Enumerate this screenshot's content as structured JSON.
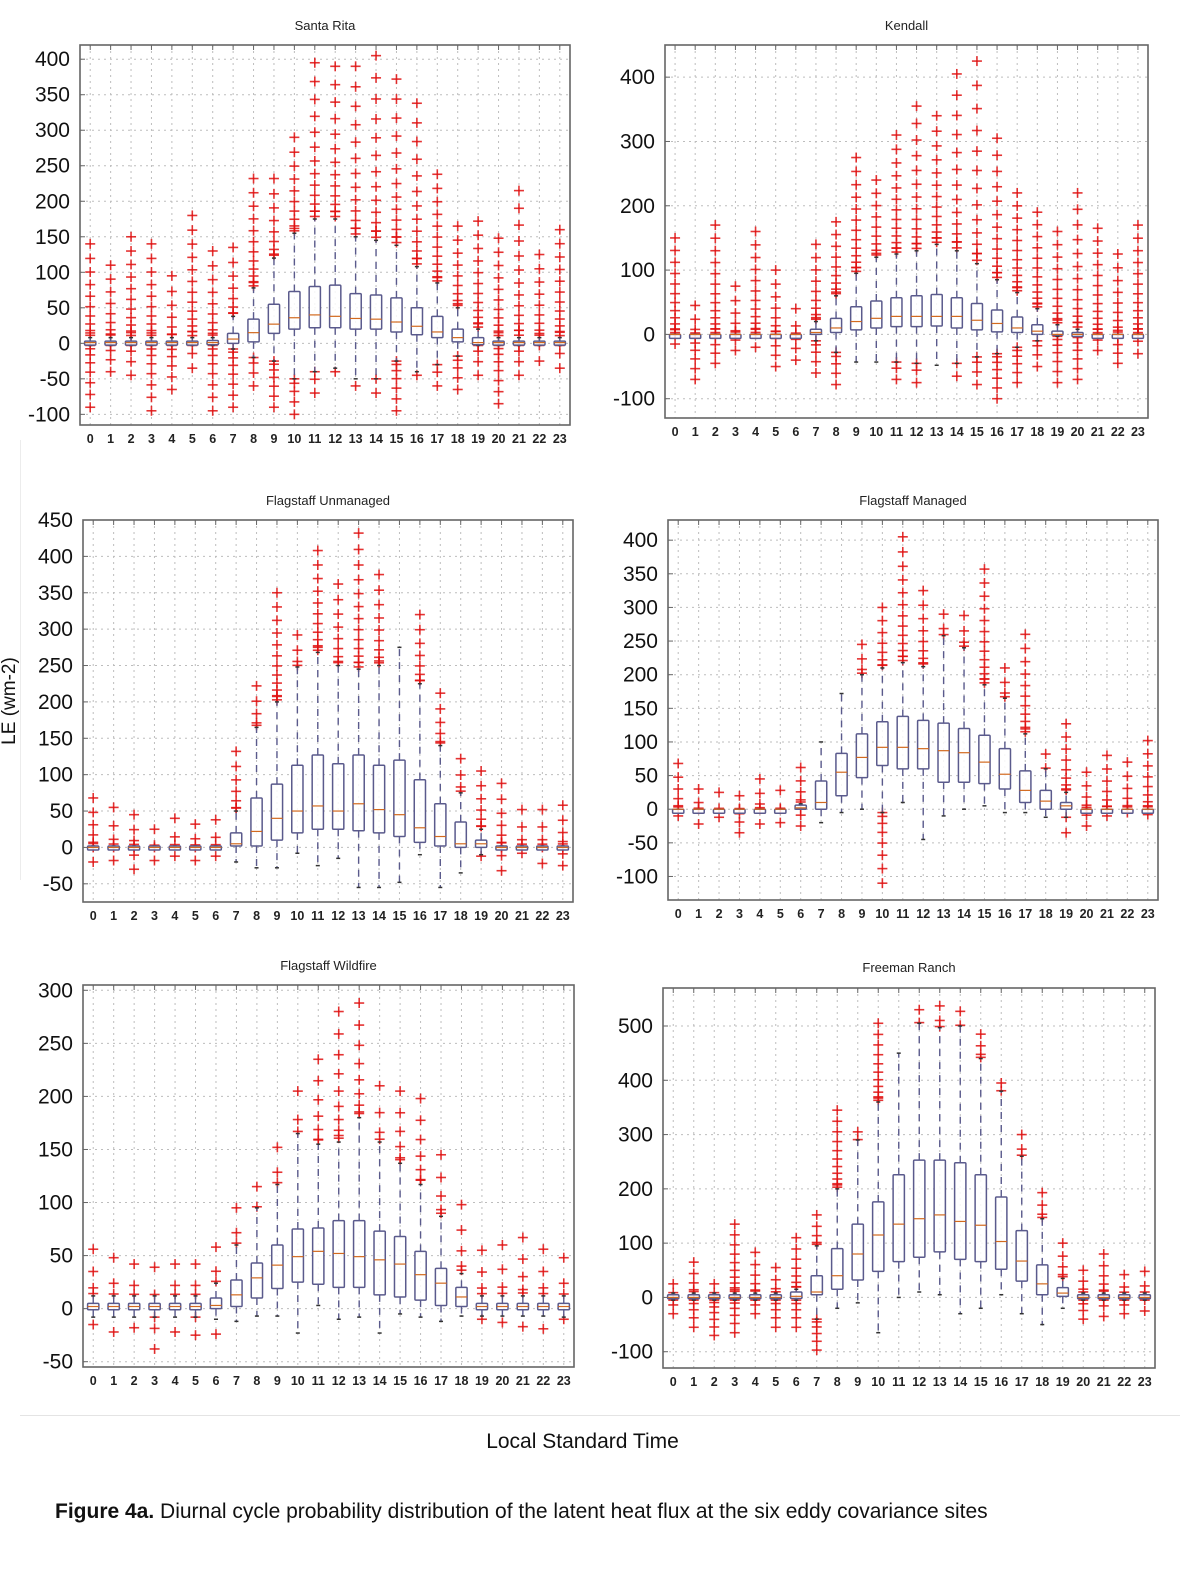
{
  "figure": {
    "ylabel": "LE (wm-2)",
    "xlabel": "Local Standard Time",
    "caption_bold": "Figure 4a.",
    "caption_text": " Diurnal cycle probability distribution of the latent heat flux at the six eddy covariance sites"
  },
  "colors": {
    "box": "#5a5a8c",
    "median": "#d2691e",
    "outlier": "#e01010",
    "frame": "#666666",
    "grid": "#bdbdbd"
  },
  "chart_data": [
    {
      "type": "box",
      "title": "Santa Rita",
      "xlabel": "Local Standard Time",
      "ylabel": "LE (wm-2)",
      "categories": [
        "0",
        "1",
        "2",
        "3",
        "4",
        "5",
        "6",
        "7",
        "8",
        "9",
        "10",
        "11",
        "12",
        "13",
        "14",
        "15",
        "16",
        "17",
        "18",
        "19",
        "20",
        "21",
        "22",
        "23"
      ],
      "ylim": [
        -115,
        420
      ],
      "yticks": [
        -100,
        -50,
        0,
        50,
        100,
        150,
        200,
        250,
        300,
        350,
        400
      ],
      "grid": true,
      "q1": [
        -2,
        -2,
        -2,
        -2,
        -2,
        -2,
        -2,
        0,
        2,
        14,
        20,
        22,
        22,
        20,
        20,
        16,
        12,
        8,
        2,
        -2,
        -2,
        -2,
        -2,
        -2
      ],
      "median": [
        1,
        1,
        1,
        1,
        1,
        1,
        1,
        6,
        15,
        27,
        36,
        40,
        38,
        35,
        34,
        30,
        24,
        16,
        8,
        1,
        1,
        1,
        1,
        1
      ],
      "q3": [
        3,
        3,
        3,
        3,
        3,
        3,
        4,
        14,
        34,
        55,
        73,
        80,
        82,
        70,
        68,
        64,
        50,
        38,
        20,
        8,
        3,
        3,
        3,
        3
      ],
      "wmin": [
        -3,
        -3,
        -3,
        -3,
        -3,
        -3,
        -3,
        -8,
        -20,
        -25,
        -50,
        -40,
        -35,
        -50,
        -50,
        -25,
        -40,
        -30,
        -18,
        -3,
        -3,
        -3,
        -3,
        -3
      ],
      "wmax": [
        8,
        8,
        8,
        8,
        8,
        8,
        8,
        38,
        78,
        120,
        155,
        175,
        175,
        150,
        145,
        138,
        108,
        85,
        50,
        20,
        8,
        8,
        8,
        8
      ],
      "outliers_max": [
        140,
        110,
        150,
        140,
        95,
        180,
        130,
        135,
        232,
        232,
        290,
        395,
        390,
        390,
        405,
        372,
        338,
        238,
        165,
        172,
        148,
        215,
        125,
        160
      ],
      "outliers_min": [
        -90,
        -40,
        -45,
        -95,
        -65,
        -35,
        -95,
        -90,
        -60,
        -90,
        -100,
        -70,
        -40,
        -60,
        -70,
        -95,
        -45,
        -60,
        -65,
        -45,
        -85,
        -45,
        -25,
        -35
      ]
    },
    {
      "type": "box",
      "title": "Kendall",
      "xlabel": "Local Standard Time",
      "ylabel": "LE (wm-2)",
      "categories": [
        "0",
        "1",
        "2",
        "3",
        "4",
        "5",
        "6",
        "7",
        "8",
        "9",
        "10",
        "11",
        "12",
        "13",
        "14",
        "15",
        "16",
        "17",
        "18",
        "19",
        "20",
        "21",
        "22",
        "23"
      ],
      "ylim": [
        -130,
        450
      ],
      "yticks": [
        -100,
        0,
        100,
        200,
        300,
        400
      ],
      "grid": true,
      "q1": [
        0,
        0,
        0,
        0,
        0,
        0,
        0,
        0,
        3,
        7,
        10,
        12,
        12,
        13,
        10,
        7,
        4,
        3,
        0,
        0,
        0,
        0,
        0,
        0
      ],
      "median": [
        0,
        0,
        0,
        0,
        0,
        0,
        0,
        3,
        10,
        20,
        25,
        28,
        28,
        28,
        28,
        22,
        17,
        10,
        5,
        0,
        0,
        0,
        0,
        0
      ],
      "q3": [
        0,
        0,
        0,
        0,
        0,
        0,
        0,
        8,
        25,
        43,
        52,
        57,
        60,
        62,
        57,
        48,
        38,
        27,
        15,
        5,
        3,
        0,
        0,
        0
      ],
      "wmin": [
        0,
        0,
        0,
        0,
        0,
        0,
        0,
        -10,
        -28,
        -43,
        -43,
        -43,
        -45,
        -48,
        -45,
        -35,
        -30,
        -20,
        -10,
        -3,
        0,
        0,
        0,
        0
      ],
      "wmax": [
        0,
        0,
        0,
        0,
        0,
        0,
        0,
        20,
        60,
        95,
        120,
        125,
        130,
        140,
        130,
        110,
        85,
        65,
        40,
        15,
        8,
        0,
        0,
        0
      ],
      "outliers_max": [
        150,
        45,
        170,
        75,
        160,
        100,
        40,
        140,
        175,
        275,
        240,
        310,
        355,
        340,
        405,
        425,
        305,
        220,
        190,
        160,
        220,
        165,
        125,
        170
      ],
      "outliers_min": [
        -15,
        -70,
        -45,
        -25,
        -20,
        -50,
        -40,
        -60,
        -78,
        -5,
        -10,
        -70,
        -75,
        -45,
        -65,
        -78,
        -100,
        -75,
        -50,
        -75,
        -70,
        -25,
        -45,
        -30
      ]
    },
    {
      "type": "box",
      "title": "Flagstaff Unmanaged",
      "xlabel": "Local Standard Time",
      "ylabel": "LE (wm-2)",
      "categories": [
        "0",
        "1",
        "2",
        "3",
        "4",
        "5",
        "6",
        "7",
        "8",
        "9",
        "10",
        "11",
        "12",
        "13",
        "14",
        "15",
        "16",
        "17",
        "18",
        "19",
        "20",
        "21",
        "22",
        "23"
      ],
      "ylim": [
        -75,
        450
      ],
      "yticks": [
        -50,
        0,
        50,
        100,
        150,
        200,
        250,
        300,
        350,
        400,
        450
      ],
      "grid": true,
      "q1": [
        0,
        0,
        0,
        0,
        0,
        0,
        0,
        2,
        2,
        10,
        20,
        25,
        25,
        23,
        20,
        15,
        7,
        2,
        0,
        0,
        0,
        0,
        0,
        0
      ],
      "median": [
        0,
        0,
        0,
        0,
        0,
        0,
        0,
        5,
        22,
        40,
        50,
        57,
        50,
        60,
        52,
        45,
        27,
        15,
        5,
        5,
        0,
        0,
        0,
        0
      ],
      "q3": [
        2,
        2,
        2,
        2,
        2,
        2,
        2,
        20,
        68,
        87,
        113,
        127,
        115,
        127,
        113,
        120,
        93,
        60,
        35,
        10,
        2,
        2,
        2,
        2
      ],
      "wmin": [
        0,
        0,
        0,
        0,
        0,
        0,
        0,
        -20,
        -28,
        -28,
        -8,
        -25,
        -15,
        -55,
        -55,
        -48,
        -10,
        -55,
        -35,
        -10,
        0,
        0,
        0,
        0
      ],
      "wmax": [
        2,
        2,
        2,
        2,
        2,
        2,
        2,
        50,
        165,
        200,
        248,
        268,
        250,
        245,
        250,
        275,
        225,
        140,
        75,
        25,
        2,
        2,
        2,
        2
      ],
      "outliers_max": [
        68,
        55,
        45,
        25,
        40,
        32,
        38,
        132,
        222,
        350,
        292,
        408,
        362,
        432,
        375,
        0,
        320,
        212,
        122,
        105,
        88,
        52,
        52,
        58
      ],
      "outliers_min": [
        -20,
        -18,
        -30,
        -18,
        -12,
        -18,
        -12,
        -20,
        -28,
        -28,
        -8,
        -25,
        -15,
        -55,
        -55,
        -48,
        -10,
        -55,
        -35,
        -12,
        -32,
        -8,
        -22,
        -25
      ]
    },
    {
      "type": "box",
      "title": "Flagstaff Managed",
      "xlabel": "Local Standard Time",
      "ylabel": "LE (wm-2)",
      "categories": [
        "0",
        "1",
        "2",
        "3",
        "4",
        "5",
        "6",
        "7",
        "8",
        "9",
        "10",
        "11",
        "12",
        "13",
        "14",
        "15",
        "16",
        "17",
        "18",
        "19",
        "20",
        "21",
        "22",
        "23"
      ],
      "ylim": [
        -135,
        430
      ],
      "yticks": [
        -100,
        -50,
        0,
        50,
        100,
        150,
        200,
        250,
        300,
        350,
        400
      ],
      "grid": true,
      "q1": [
        0,
        0,
        0,
        0,
        0,
        0,
        0,
        0,
        20,
        47,
        65,
        60,
        60,
        40,
        40,
        38,
        30,
        10,
        0,
        0,
        0,
        0,
        0,
        0
      ],
      "median": [
        0,
        0,
        0,
        0,
        0,
        0,
        2,
        10,
        55,
        77,
        92,
        92,
        90,
        87,
        84,
        70,
        52,
        28,
        12,
        5,
        0,
        0,
        0,
        0
      ],
      "q3": [
        0,
        0,
        0,
        0,
        0,
        0,
        6,
        42,
        83,
        112,
        130,
        138,
        132,
        128,
        120,
        110,
        90,
        57,
        28,
        10,
        0,
        0,
        0,
        0
      ],
      "wmin": [
        0,
        0,
        0,
        0,
        0,
        0,
        0,
        -20,
        -5,
        0,
        -5,
        10,
        -45,
        -10,
        0,
        5,
        -5,
        -5,
        -12,
        -12,
        0,
        0,
        0,
        0
      ],
      "wmax": [
        0,
        0,
        0,
        0,
        0,
        0,
        8,
        100,
        172,
        200,
        210,
        218,
        212,
        258,
        240,
        185,
        165,
        112,
        60,
        25,
        0,
        0,
        0,
        0
      ],
      "outliers_max": [
        68,
        30,
        25,
        20,
        45,
        28,
        62,
        0,
        0,
        245,
        300,
        405,
        325,
        290,
        288,
        357,
        210,
        260,
        82,
        127,
        55,
        80,
        70,
        102
      ],
      "outliers_min": [
        -10,
        -22,
        -12,
        -35,
        -22,
        -20,
        -25,
        0,
        0,
        0,
        -110,
        0,
        0,
        0,
        0,
        0,
        0,
        0,
        0,
        -35,
        -25,
        -10,
        -5,
        -8
      ]
    },
    {
      "type": "box",
      "title": "Flagstaff Wildfire",
      "xlabel": "Local Standard Time",
      "ylabel": "LE (wm-2)",
      "categories": [
        "0",
        "1",
        "2",
        "3",
        "4",
        "5",
        "6",
        "7",
        "8",
        "9",
        "10",
        "11",
        "12",
        "13",
        "14",
        "15",
        "16",
        "17",
        "18",
        "19",
        "20",
        "21",
        "22",
        "23"
      ],
      "ylim": [
        -55,
        305
      ],
      "yticks": [
        -50,
        0,
        50,
        100,
        150,
        200,
        250,
        300
      ],
      "grid": true,
      "q1": [
        -1,
        -1,
        -1,
        -1,
        -1,
        -1,
        0,
        2,
        10,
        19,
        25,
        23,
        20,
        20,
        13,
        11,
        8,
        3,
        2,
        -1,
        -1,
        -1,
        -1,
        -1
      ],
      "median": [
        2,
        2,
        2,
        2,
        2,
        2,
        3,
        13,
        29,
        41,
        49,
        54,
        52,
        49,
        46,
        42,
        32,
        24,
        11,
        2,
        2,
        2,
        2,
        2
      ],
      "q3": [
        5,
        5,
        5,
        5,
        5,
        5,
        10,
        27,
        43,
        60,
        75,
        76,
        83,
        83,
        73,
        68,
        54,
        38,
        20,
        5,
        5,
        5,
        5,
        5
      ],
      "wmin": [
        -8,
        -8,
        -8,
        -8,
        -8,
        -8,
        -10,
        -12,
        -7,
        -7,
        -23,
        3,
        -10,
        -8,
        -23,
        -5,
        -8,
        -12,
        -7,
        -7,
        -7,
        -7,
        -7,
        -8
      ],
      "wmax": [
        12,
        12,
        12,
        12,
        12,
        12,
        24,
        60,
        95,
        117,
        165,
        155,
        157,
        180,
        157,
        137,
        117,
        87,
        33,
        12,
        12,
        12,
        12,
        12
      ],
      "outliers_max": [
        56,
        48,
        42,
        39,
        42,
        42,
        58,
        95,
        115,
        152,
        205,
        235,
        280,
        288,
        210,
        205,
        198,
        145,
        98,
        55,
        60,
        67,
        56,
        48
      ],
      "outliers_min": [
        -15,
        -22,
        -18,
        -38,
        -22,
        -25,
        -24,
        0,
        0,
        0,
        0,
        0,
        0,
        0,
        0,
        0,
        0,
        0,
        0,
        -10,
        -13,
        -17,
        -19,
        -10
      ]
    },
    {
      "type": "box",
      "title": "Freeman Ranch",
      "xlabel": "Local Standard Time",
      "ylabel": "LE (wm-2)",
      "categories": [
        "0",
        "1",
        "2",
        "3",
        "4",
        "5",
        "6",
        "7",
        "8",
        "9",
        "10",
        "11",
        "12",
        "13",
        "14",
        "15",
        "16",
        "17",
        "18",
        "19",
        "20",
        "21",
        "22",
        "23"
      ],
      "ylim": [
        -130,
        570
      ],
      "yticks": [
        -100,
        0,
        100,
        200,
        300,
        400,
        500
      ],
      "grid": true,
      "q1": [
        -2,
        -2,
        -2,
        -2,
        -2,
        -2,
        -2,
        5,
        15,
        32,
        48,
        66,
        74,
        84,
        70,
        66,
        52,
        30,
        5,
        2,
        -2,
        -2,
        -2,
        -2
      ],
      "median": [
        0,
        0,
        0,
        0,
        0,
        0,
        2,
        10,
        40,
        80,
        115,
        135,
        145,
        152,
        140,
        133,
        103,
        67,
        25,
        8,
        0,
        0,
        0,
        0
      ],
      "q3": [
        5,
        5,
        5,
        5,
        5,
        5,
        10,
        40,
        90,
        135,
        176,
        226,
        253,
        253,
        248,
        226,
        185,
        123,
        60,
        18,
        5,
        5,
        5,
        5
      ],
      "wmin": [
        -5,
        -5,
        -5,
        -5,
        -5,
        -5,
        -5,
        -40,
        -20,
        -10,
        -65,
        0,
        10,
        5,
        -30,
        -20,
        5,
        -30,
        -50,
        -20,
        -5,
        -5,
        -5,
        -5
      ],
      "wmax": [
        8,
        8,
        8,
        8,
        8,
        8,
        15,
        95,
        200,
        290,
        360,
        450,
        505,
        497,
        500,
        440,
        380,
        260,
        145,
        35,
        8,
        8,
        8,
        8
      ],
      "outliers_max": [
        25,
        65,
        25,
        135,
        83,
        55,
        110,
        152,
        345,
        305,
        505,
        0,
        530,
        537,
        527,
        485,
        395,
        300,
        193,
        100,
        50,
        80,
        42,
        48
      ],
      "outliers_min": [
        -30,
        -55,
        -70,
        -65,
        -30,
        -55,
        -55,
        -97,
        0,
        0,
        0,
        0,
        0,
        0,
        0,
        0,
        0,
        0,
        0,
        0,
        -40,
        -35,
        -30,
        -25
      ]
    }
  ]
}
